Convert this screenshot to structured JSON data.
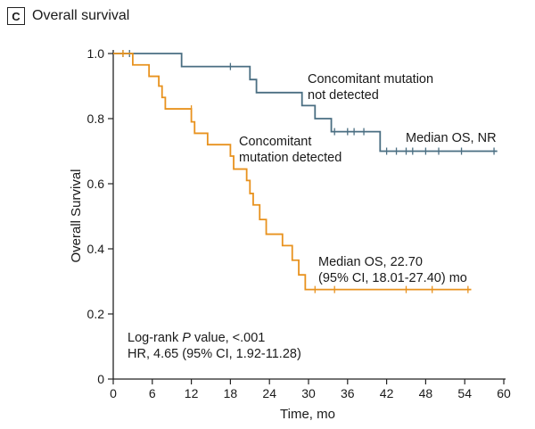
{
  "panel": {
    "letter": "C",
    "title": "Overall survival"
  },
  "chart_data": {
    "type": "line",
    "title": "Overall survival",
    "xlabel": "Time, mo",
    "ylabel": "Overall Survival",
    "xlim": [
      0,
      60
    ],
    "ylim": [
      0,
      1.0
    ],
    "xticks": [
      0,
      6,
      12,
      18,
      24,
      30,
      36,
      42,
      48,
      54,
      60
    ],
    "yticks": [
      "0",
      "0.2",
      "0.4",
      "0.6",
      "0.8",
      "1.0"
    ],
    "yticks_values": [
      0,
      0.2,
      0.4,
      0.6,
      0.8,
      1.0
    ],
    "series": [
      {
        "name": "Concomitant mutation not detected",
        "color": "#4a6e82",
        "steps": [
          [
            0,
            1.0
          ],
          [
            10.5,
            0.96
          ],
          [
            21,
            0.92
          ],
          [
            22,
            0.88
          ],
          [
            29,
            0.84
          ],
          [
            31,
            0.8
          ],
          [
            33.5,
            0.76
          ],
          [
            41,
            0.7
          ],
          [
            59,
            0.7
          ]
        ],
        "censored": [
          [
            1.5,
            1.0
          ],
          [
            2.5,
            1.0
          ],
          [
            18,
            0.96
          ],
          [
            34,
            0.76
          ],
          [
            36,
            0.76
          ],
          [
            37,
            0.76
          ],
          [
            38.5,
            0.76
          ],
          [
            42,
            0.7
          ],
          [
            43.5,
            0.7
          ],
          [
            45,
            0.7
          ],
          [
            46,
            0.7
          ],
          [
            48,
            0.7
          ],
          [
            50,
            0.7
          ],
          [
            53.5,
            0.7
          ],
          [
            58.5,
            0.7
          ]
        ]
      },
      {
        "name": "Concomitant mutation detected",
        "color": "#e8921e",
        "steps": [
          [
            0,
            1.0
          ],
          [
            3,
            0.965
          ],
          [
            5.5,
            0.93
          ],
          [
            7,
            0.9
          ],
          [
            7.5,
            0.865
          ],
          [
            8,
            0.83
          ],
          [
            12,
            0.79
          ],
          [
            12.5,
            0.755
          ],
          [
            14.5,
            0.72
          ],
          [
            18,
            0.685
          ],
          [
            18.5,
            0.645
          ],
          [
            20.5,
            0.61
          ],
          [
            21,
            0.57
          ],
          [
            21.5,
            0.535
          ],
          [
            22.5,
            0.49
          ],
          [
            23.5,
            0.445
          ],
          [
            26,
            0.41
          ],
          [
            27.5,
            0.365
          ],
          [
            28.5,
            0.32
          ],
          [
            29.5,
            0.275
          ],
          [
            55,
            0.275
          ]
        ],
        "censored": [
          [
            1.5,
            1.0
          ],
          [
            12,
            0.83
          ],
          [
            31,
            0.275
          ],
          [
            34,
            0.275
          ],
          [
            45,
            0.275
          ],
          [
            49,
            0.275
          ],
          [
            54.5,
            0.275
          ]
        ]
      }
    ],
    "annotations": {
      "not_detected_label": [
        "Concomitant mutation",
        "not detected"
      ],
      "median_not_detected": "Median OS, NR",
      "detected_label": [
        "Concomitant",
        "mutation detected"
      ],
      "median_detected": [
        "Median OS, 22.70",
        "(95% CI, 18.01-27.40) mo"
      ],
      "logrank_prefix": "Log-rank ",
      "logrank_p": "P",
      "logrank_suffix": " value, <.001",
      "hr": "HR, 4.65 (95% CI, 1.92-11.28)"
    }
  }
}
